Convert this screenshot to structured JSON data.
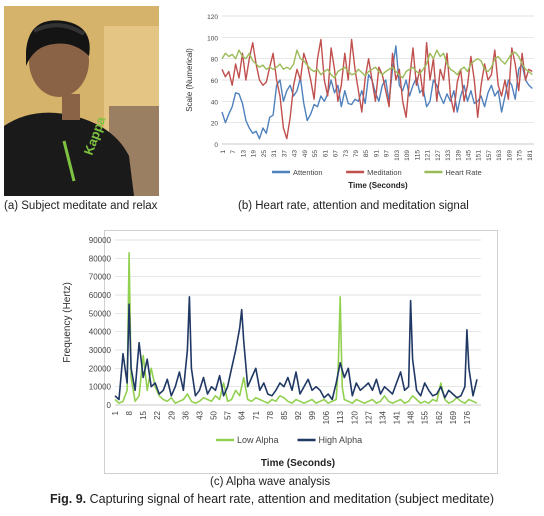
{
  "captions": {
    "a": "(a) Subject meditate and relax",
    "b": "(b) Heart rate, attention and meditation signal",
    "c": "(c) Alpha wave analysis",
    "fig_label": "Fig. 9.",
    "fig_text": " Capturing signal of heart rate, attention and meditation (subject meditate)"
  },
  "photo": {
    "shirt_text": "Kappa"
  },
  "colors": {
    "attention": "#4f81bd",
    "meditation": "#c0504d",
    "heart_rate": "#9bbb59",
    "low_alpha": "#92d050",
    "high_alpha": "#1f3864"
  },
  "chart_data": [
    {
      "type": "line",
      "title": "",
      "xlabel": "Time (Seconds)",
      "ylabel": "Scale (Numerical)",
      "ylim": [
        0,
        120
      ],
      "yticks": [
        0,
        20,
        40,
        60,
        80,
        100,
        120
      ],
      "xticks": [
        1,
        7,
        13,
        19,
        25,
        31,
        37,
        43,
        49,
        55,
        61,
        67,
        73,
        79,
        85,
        91,
        97,
        103,
        109,
        115,
        121,
        127,
        133,
        139,
        145,
        151,
        157,
        163,
        169,
        175,
        181
      ],
      "grid": true,
      "legend": "bottom",
      "series": [
        {
          "name": "Attention",
          "color": "#4f81bd",
          "x": [
            1,
            3,
            5,
            7,
            9,
            11,
            13,
            15,
            17,
            19,
            21,
            23,
            25,
            27,
            29,
            31,
            33,
            35,
            37,
            39,
            41,
            43,
            45,
            47,
            49,
            51,
            53,
            55,
            57,
            59,
            61,
            63,
            65,
            67,
            69,
            71,
            73,
            75,
            77,
            79,
            81,
            83,
            85,
            87,
            89,
            91,
            93,
            95,
            97,
            99,
            101,
            103,
            105,
            107,
            109,
            111,
            113,
            115,
            117,
            119,
            121,
            123,
            125,
            127,
            129,
            131,
            133,
            135,
            137,
            139,
            141,
            143,
            145,
            147,
            149,
            151,
            153,
            155,
            157,
            159,
            161,
            163,
            165,
            167,
            169,
            171,
            173,
            175,
            177,
            179,
            181,
            183
          ],
          "values": [
            30,
            20,
            28,
            35,
            48,
            47,
            38,
            22,
            15,
            10,
            12,
            5,
            15,
            10,
            25,
            27,
            55,
            60,
            40,
            50,
            55,
            45,
            50,
            62,
            38,
            22,
            28,
            37,
            35,
            45,
            40,
            47,
            60,
            48,
            55,
            35,
            50,
            38,
            37,
            42,
            40,
            50,
            38,
            65,
            60,
            48,
            40,
            55,
            60,
            40,
            70,
            92,
            55,
            50,
            60,
            45,
            55,
            62,
            48,
            52,
            35,
            40,
            60,
            55,
            45,
            38,
            47,
            40,
            50,
            30,
            45,
            55,
            40,
            50,
            38,
            40,
            45,
            35,
            48,
            55,
            45,
            50,
            30,
            45,
            60,
            55,
            42,
            70,
            75,
            60,
            55,
            52
          ]
        },
        {
          "name": "Meditation",
          "color": "#c0504d",
          "x": [
            1,
            3,
            5,
            7,
            9,
            11,
            13,
            15,
            17,
            19,
            21,
            23,
            25,
            27,
            29,
            31,
            33,
            35,
            37,
            39,
            41,
            43,
            45,
            47,
            49,
            51,
            53,
            55,
            57,
            59,
            61,
            63,
            65,
            67,
            69,
            71,
            73,
            75,
            77,
            79,
            81,
            83,
            85,
            87,
            89,
            91,
            93,
            95,
            97,
            99,
            101,
            103,
            105,
            107,
            109,
            111,
            113,
            115,
            117,
            119,
            121,
            123,
            125,
            127,
            129,
            131,
            133,
            135,
            137,
            139,
            141,
            143,
            145,
            147,
            149,
            151,
            153,
            155,
            157,
            159,
            161,
            163,
            165,
            167,
            169,
            171,
            173,
            175,
            177,
            179,
            181,
            183
          ],
          "values": [
            70,
            63,
            68,
            55,
            75,
            62,
            85,
            60,
            80,
            95,
            75,
            60,
            55,
            58,
            72,
            85,
            60,
            45,
            15,
            5,
            25,
            55,
            70,
            60,
            85,
            75,
            60,
            42,
            80,
            98,
            60,
            45,
            90,
            70,
            40,
            55,
            85,
            60,
            98,
            70,
            50,
            30,
            62,
            80,
            60,
            40,
            72,
            65,
            50,
            35,
            85,
            60,
            70,
            40,
            25,
            60,
            90,
            55,
            70,
            45,
            95,
            60,
            80,
            40,
            70,
            60,
            85,
            45,
            30,
            58,
            70,
            40,
            55,
            82,
            60,
            25,
            55,
            75,
            60,
            65,
            88,
            55,
            45,
            60,
            42,
            90,
            75,
            50,
            85,
            60,
            70,
            68
          ]
        },
        {
          "name": "Heart Rate",
          "color": "#9bbb59",
          "x": [
            1,
            3,
            5,
            7,
            9,
            11,
            13,
            15,
            17,
            19,
            21,
            23,
            25,
            27,
            29,
            31,
            33,
            35,
            37,
            39,
            41,
            43,
            45,
            47,
            49,
            51,
            53,
            55,
            57,
            59,
            61,
            63,
            65,
            67,
            69,
            71,
            73,
            75,
            77,
            79,
            81,
            83,
            85,
            87,
            89,
            91,
            93,
            95,
            97,
            99,
            101,
            103,
            105,
            107,
            109,
            111,
            113,
            115,
            117,
            119,
            121,
            123,
            125,
            127,
            129,
            131,
            133,
            135,
            137,
            139,
            141,
            143,
            145,
            147,
            149,
            151,
            153,
            155,
            157,
            159,
            161,
            163,
            165,
            167,
            169,
            171,
            173,
            175,
            177,
            179,
            181,
            183
          ],
          "values": [
            80,
            85,
            82,
            84,
            80,
            88,
            82,
            80,
            85,
            78,
            75,
            72,
            74,
            70,
            72,
            70,
            72,
            75,
            70,
            72,
            70,
            75,
            88,
            80,
            78,
            74,
            70,
            68,
            70,
            65,
            68,
            70,
            65,
            62,
            68,
            70,
            72,
            68,
            65,
            66,
            70,
            67,
            64,
            68,
            70,
            72,
            68,
            65,
            68,
            70,
            72,
            68,
            65,
            62,
            68,
            70,
            72,
            68,
            66,
            70,
            75,
            85,
            80,
            88,
            82,
            85,
            75,
            70,
            68,
            65,
            70,
            72,
            68,
            75,
            78,
            80,
            78,
            70,
            68,
            72,
            80,
            82,
            78,
            75,
            80,
            85,
            86,
            82,
            75,
            70,
            68,
            65
          ]
        }
      ]
    },
    {
      "type": "line",
      "title": "",
      "xlabel": "Time (Seconds)",
      "ylabel": "Frequency (Hertz)",
      "ylim": [
        0,
        90000
      ],
      "yticks": [
        0,
        10000,
        20000,
        30000,
        40000,
        50000,
        60000,
        70000,
        80000,
        90000
      ],
      "xticks": [
        1,
        8,
        15,
        22,
        29,
        36,
        43,
        50,
        57,
        64,
        71,
        78,
        85,
        92,
        99,
        106,
        113,
        120,
        127,
        134,
        141,
        148,
        155,
        162,
        169,
        176
      ],
      "grid": true,
      "legend": "bottom",
      "series": [
        {
          "name": "Low Alpha",
          "color": "#92d050",
          "x": [
            1,
            3,
            5,
            7,
            8,
            9,
            11,
            13,
            15,
            17,
            19,
            21,
            23,
            25,
            27,
            29,
            31,
            33,
            35,
            37,
            39,
            41,
            43,
            45,
            47,
            49,
            51,
            53,
            55,
            57,
            59,
            61,
            63,
            65,
            67,
            69,
            71,
            73,
            75,
            77,
            79,
            81,
            83,
            85,
            87,
            89,
            91,
            93,
            95,
            97,
            99,
            101,
            103,
            105,
            107,
            109,
            111,
            112,
            113,
            114,
            115,
            117,
            119,
            121,
            123,
            125,
            127,
            129,
            131,
            133,
            135,
            137,
            139,
            141,
            143,
            145,
            147,
            149,
            151,
            153,
            155,
            157,
            159,
            161,
            163,
            165,
            167,
            169,
            171,
            173,
            175,
            177,
            179,
            181
          ],
          "values": [
            3000,
            1000,
            2000,
            8000,
            83000,
            15000,
            2000,
            5000,
            27000,
            8000,
            20000,
            10000,
            5000,
            3000,
            2000,
            4000,
            1000,
            2000,
            3000,
            6000,
            2000,
            1000,
            2000,
            4000,
            3000,
            2000,
            5000,
            3000,
            12000,
            2000,
            3000,
            8000,
            5000,
            15000,
            3000,
            2000,
            4000,
            3000,
            2000,
            1000,
            3000,
            2000,
            5000,
            4000,
            2000,
            1000,
            3000,
            2000,
            1000,
            2000,
            3000,
            1000,
            2000,
            3000,
            1000,
            2000,
            3000,
            20000,
            59000,
            10000,
            3000,
            2000,
            1000,
            3000,
            2000,
            1000,
            2000,
            3000,
            1000,
            2000,
            5000,
            2000,
            1000,
            2000,
            3000,
            1000,
            2000,
            5000,
            3000,
            1000,
            2000,
            1000,
            3000,
            2000,
            12000,
            3000,
            1000,
            2000,
            4000,
            2000,
            1000,
            3000,
            2000,
            1000
          ]
        },
        {
          "name": "High Alpha",
          "color": "#1f3864",
          "x": [
            1,
            3,
            5,
            7,
            8,
            9,
            11,
            13,
            15,
            17,
            19,
            21,
            23,
            25,
            27,
            29,
            31,
            33,
            35,
            37,
            38,
            39,
            41,
            43,
            45,
            47,
            49,
            51,
            53,
            55,
            57,
            59,
            61,
            63,
            64,
            65,
            67,
            69,
            71,
            73,
            75,
            77,
            79,
            81,
            83,
            85,
            87,
            89,
            91,
            93,
            95,
            97,
            99,
            101,
            103,
            105,
            107,
            109,
            111,
            113,
            115,
            117,
            119,
            121,
            123,
            125,
            127,
            129,
            131,
            133,
            135,
            137,
            139,
            141,
            143,
            145,
            147,
            148,
            149,
            151,
            153,
            155,
            157,
            159,
            161,
            163,
            165,
            167,
            169,
            171,
            173,
            175,
            176,
            177,
            179,
            181
          ],
          "values": [
            5000,
            3000,
            28000,
            12000,
            55000,
            20000,
            8000,
            34000,
            15000,
            25000,
            10000,
            12000,
            6000,
            8000,
            14000,
            5000,
            10000,
            18000,
            8000,
            30000,
            59000,
            20000,
            5000,
            8000,
            15000,
            6000,
            10000,
            8000,
            16000,
            5000,
            10000,
            20000,
            30000,
            42000,
            52000,
            35000,
            10000,
            15000,
            20000,
            8000,
            12000,
            6000,
            5000,
            8000,
            12000,
            10000,
            15000,
            8000,
            18000,
            6000,
            10000,
            14000,
            8000,
            10000,
            8000,
            4000,
            6000,
            3000,
            12000,
            23000,
            15000,
            20000,
            5000,
            12000,
            8000,
            10000,
            12000,
            8000,
            14000,
            6000,
            10000,
            8000,
            6000,
            12000,
            18000,
            8000,
            10000,
            57000,
            25000,
            8000,
            5000,
            12000,
            8000,
            5000,
            6000,
            10000,
            4000,
            8000,
            6000,
            4000,
            5000,
            10000,
            41000,
            20000,
            5000,
            14000
          ]
        }
      ]
    }
  ]
}
